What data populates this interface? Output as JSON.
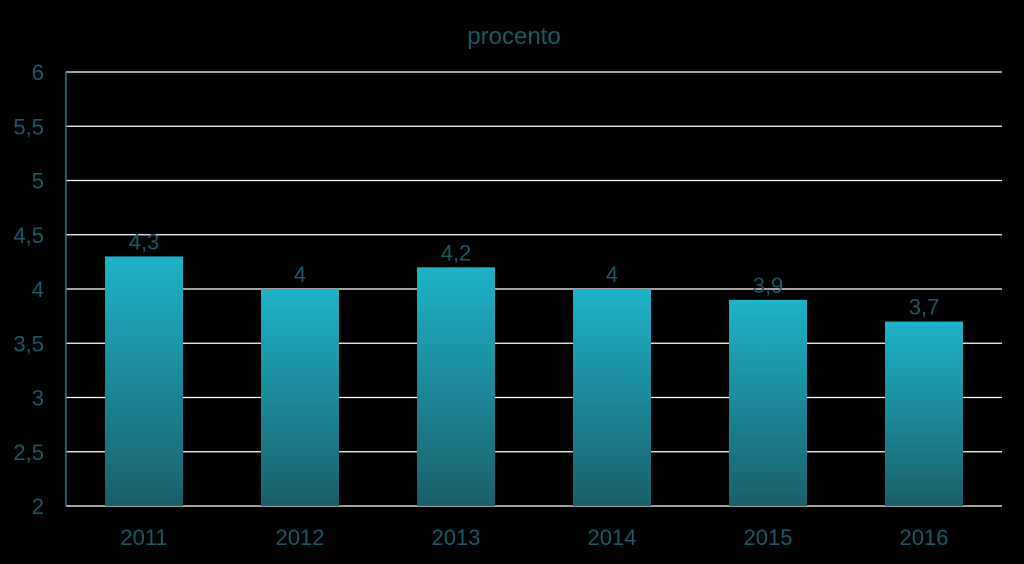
{
  "chart_data": {
    "type": "bar",
    "title": "procento",
    "xlabel": "",
    "ylabel": "",
    "categories": [
      "2011",
      "2012",
      "2013",
      "2014",
      "2015",
      "2016"
    ],
    "values": [
      4.3,
      4,
      4.2,
      4,
      3.9,
      3.7
    ],
    "data_labels": [
      "4,3",
      "4",
      "4,2",
      "4",
      "3,9",
      "3,7"
    ],
    "ylim": [
      2,
      6
    ],
    "yticks": [
      2,
      2.5,
      3,
      3.5,
      4,
      4.5,
      5,
      5.5,
      6
    ],
    "ytick_labels": [
      "2",
      "2,5",
      "3",
      "3,5",
      "4",
      "4,5",
      "5",
      "5,5",
      "6"
    ],
    "grid": true,
    "legend": "none",
    "colors": {
      "bar_top": "#1fb3c8",
      "bar_bottom": "#1a5f6a",
      "text": "#1b5a66",
      "grid": "#ffffff",
      "axis": "#1f7f8c",
      "background": "#000000"
    }
  }
}
